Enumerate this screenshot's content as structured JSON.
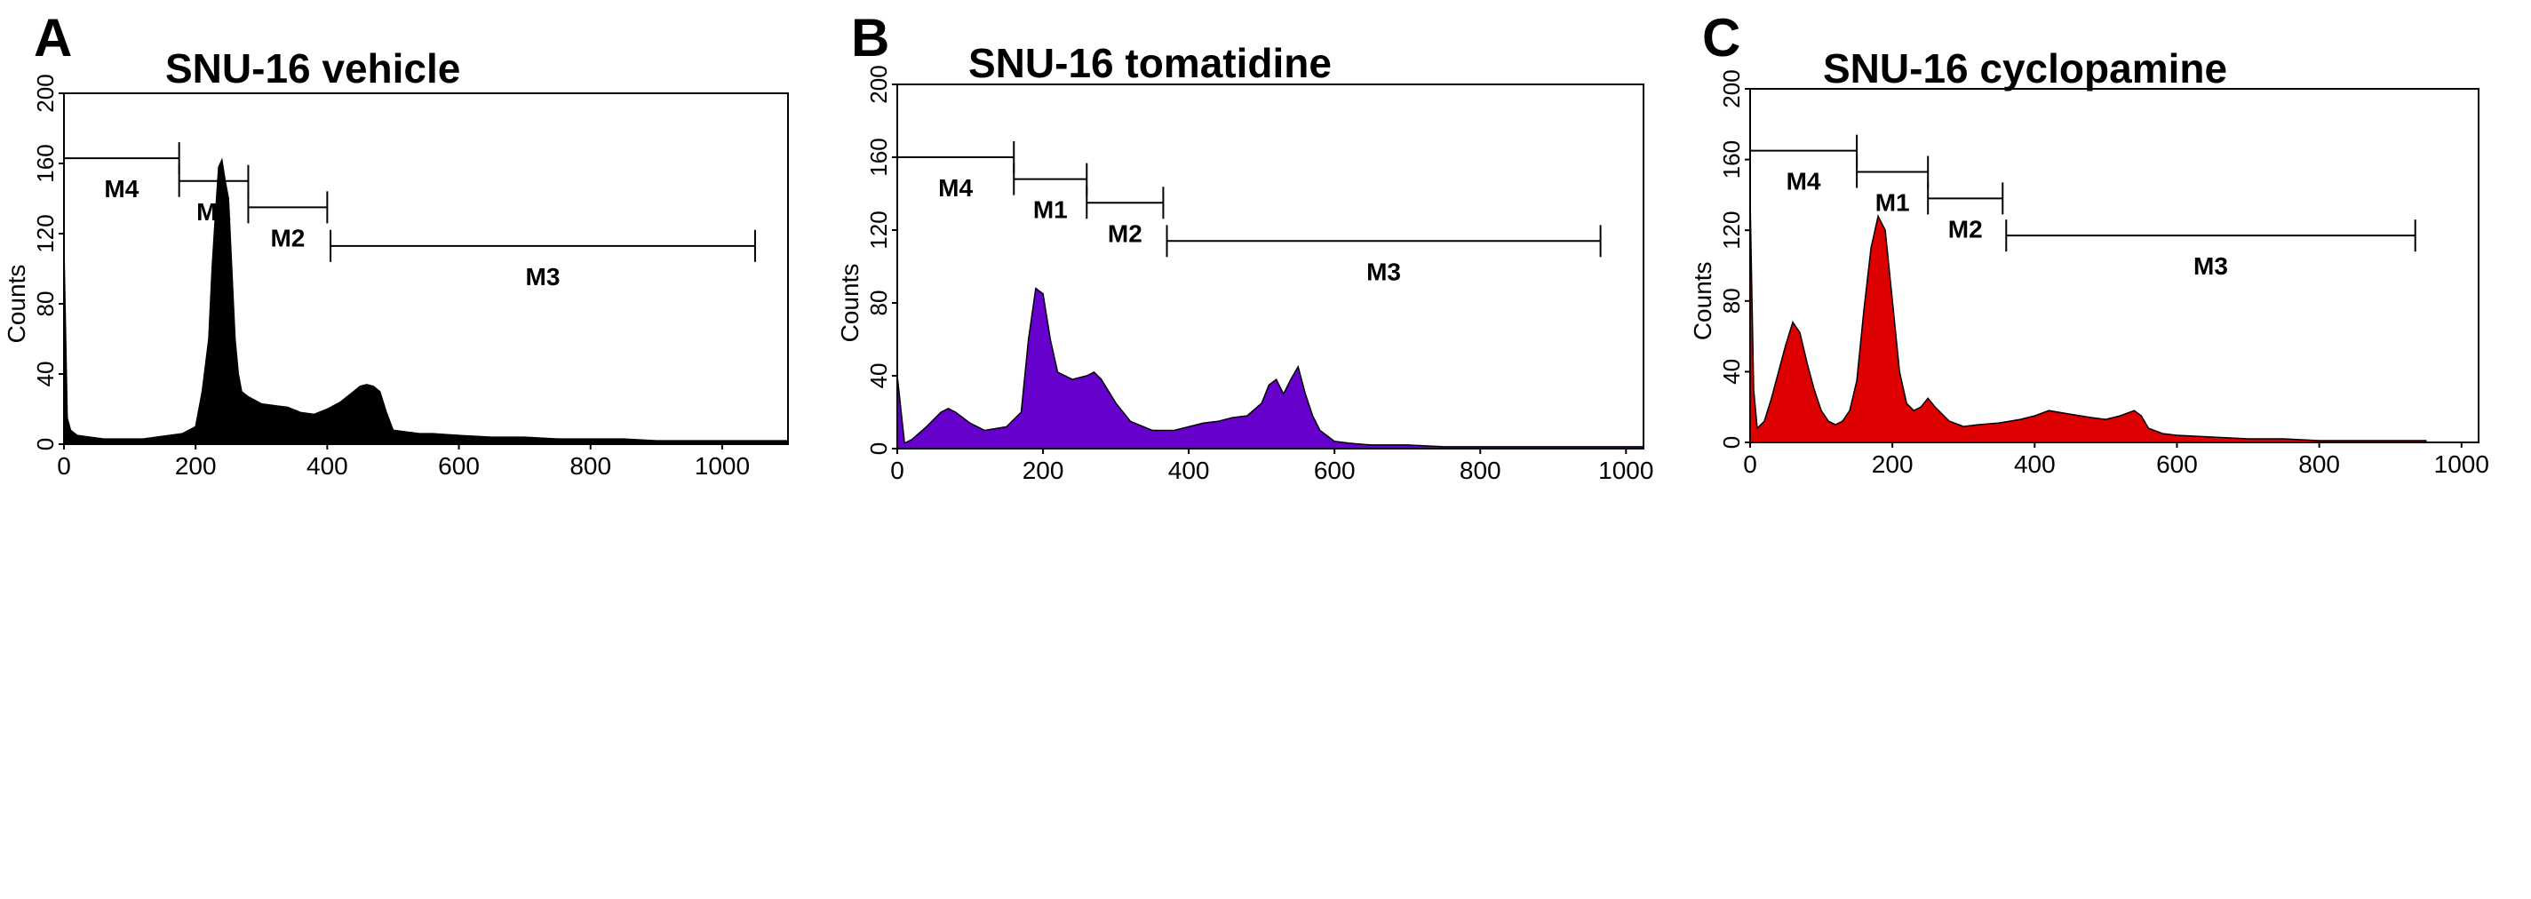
{
  "chart_data": [
    {
      "type": "area",
      "panel_label": "A",
      "title": "SNU-16 vehicle",
      "xlabel": "",
      "ylabel": "Counts",
      "xlim": [
        0,
        1100
      ],
      "ylim": [
        0,
        200
      ],
      "xticks": [
        "0",
        "200",
        "400",
        "600",
        "800",
        "1000"
      ],
      "yticks": [
        "0",
        "40",
        "80",
        "120",
        "160",
        "200"
      ],
      "fill_color": "#000000",
      "series": [
        {
          "x": [
            0,
            5,
            10,
            20,
            40,
            60,
            80,
            100,
            120,
            140,
            160,
            180,
            200,
            210,
            220,
            225,
            230,
            235,
            240,
            245,
            250,
            255,
            260,
            265,
            270,
            280,
            290,
            300,
            320,
            340,
            360,
            380,
            400,
            420,
            440,
            450,
            460,
            470,
            480,
            490,
            500,
            520,
            540,
            560,
            600,
            650,
            700,
            750,
            800,
            850,
            900,
            950,
            1000,
            1050,
            1100
          ],
          "y": [
            112,
            15,
            8,
            5,
            4,
            3,
            3,
            3,
            3,
            4,
            5,
            6,
            10,
            30,
            60,
            100,
            130,
            158,
            162,
            150,
            140,
            100,
            60,
            40,
            30,
            27,
            25,
            23,
            22,
            21,
            18,
            17,
            20,
            24,
            30,
            33,
            34,
            33,
            30,
            18,
            8,
            7,
            6,
            6,
            5,
            4,
            4,
            3,
            3,
            3,
            2,
            2,
            2,
            2,
            2
          ]
        }
      ],
      "markers": [
        {
          "label": "M4",
          "x1": 0,
          "x2": 175,
          "y": 163
        },
        {
          "label": "M1",
          "x1": 175,
          "x2": 280,
          "y": 150
        },
        {
          "label": "M2",
          "x1": 280,
          "x2": 400,
          "y": 135
        },
        {
          "label": "M3",
          "x1": 405,
          "x2": 1050,
          "y": 113
        }
      ]
    },
    {
      "type": "area",
      "panel_label": "B",
      "title": "SNU-16 tomatidine",
      "xlabel": "",
      "ylabel": "Counts",
      "xlim": [
        0,
        1024
      ],
      "ylim": [
        0,
        200
      ],
      "xticks": [
        "0",
        "200",
        "400",
        "600",
        "800",
        "1000"
      ],
      "yticks": [
        "0",
        "40",
        "80",
        "120",
        "160",
        "200"
      ],
      "fill_color": "#6600cc",
      "series": [
        {
          "x": [
            0,
            10,
            20,
            40,
            60,
            70,
            80,
            100,
            120,
            150,
            170,
            180,
            190,
            200,
            210,
            220,
            240,
            260,
            270,
            280,
            300,
            320,
            350,
            380,
            400,
            420,
            440,
            460,
            480,
            500,
            510,
            520,
            530,
            540,
            550,
            560,
            570,
            580,
            600,
            620,
            650,
            700,
            750,
            800,
            850,
            900,
            950,
            1000,
            1024
          ],
          "y": [
            40,
            3,
            5,
            12,
            20,
            22,
            20,
            14,
            10,
            12,
            20,
            60,
            88,
            85,
            60,
            42,
            38,
            40,
            42,
            38,
            25,
            15,
            10,
            10,
            12,
            14,
            15,
            17,
            18,
            25,
            35,
            38,
            30,
            38,
            45,
            30,
            18,
            10,
            4,
            3,
            2,
            2,
            1,
            1,
            1,
            1,
            1,
            1,
            1
          ]
        }
      ],
      "markers": [
        {
          "label": "M4",
          "x1": 0,
          "x2": 160,
          "y": 160
        },
        {
          "label": "M1",
          "x1": 160,
          "x2": 260,
          "y": 148
        },
        {
          "label": "M2",
          "x1": 260,
          "x2": 365,
          "y": 135
        },
        {
          "label": "M3",
          "x1": 370,
          "x2": 965,
          "y": 114
        }
      ]
    },
    {
      "type": "area",
      "panel_label": "C",
      "title": "SNU-16 cyclopamine",
      "xlabel": "",
      "ylabel": "Counts",
      "xlim": [
        0,
        1024
      ],
      "ylim": [
        0,
        200
      ],
      "xticks": [
        "0",
        "200",
        "400",
        "600",
        "800",
        "1000"
      ],
      "yticks": [
        "0",
        "40",
        "80",
        "120",
        "160",
        "200"
      ],
      "fill_color": "#dd0000",
      "series": [
        {
          "x": [
            0,
            5,
            10,
            20,
            30,
            40,
            50,
            60,
            70,
            80,
            90,
            100,
            110,
            120,
            130,
            140,
            150,
            160,
            170,
            180,
            190,
            200,
            210,
            220,
            230,
            240,
            250,
            260,
            280,
            300,
            320,
            350,
            380,
            400,
            420,
            450,
            480,
            500,
            520,
            540,
            550,
            560,
            580,
            600,
            650,
            700,
            750,
            800,
            850,
            900,
            950
          ],
          "y": [
            138,
            30,
            8,
            12,
            25,
            40,
            55,
            68,
            62,
            45,
            30,
            18,
            12,
            10,
            12,
            18,
            35,
            75,
            110,
            128,
            120,
            80,
            40,
            22,
            18,
            20,
            25,
            20,
            12,
            9,
            10,
            11,
            13,
            15,
            18,
            16,
            14,
            13,
            15,
            18,
            15,
            8,
            5,
            4,
            3,
            2,
            2,
            1,
            1,
            1,
            1
          ]
        }
      ],
      "markers": [
        {
          "label": "M4",
          "x1": 0,
          "x2": 150,
          "y": 165
        },
        {
          "label": "M1",
          "x1": 150,
          "x2": 250,
          "y": 153
        },
        {
          "label": "M2",
          "x1": 250,
          "x2": 355,
          "y": 138
        },
        {
          "label": "M3",
          "x1": 360,
          "x2": 935,
          "y": 117
        }
      ]
    }
  ]
}
